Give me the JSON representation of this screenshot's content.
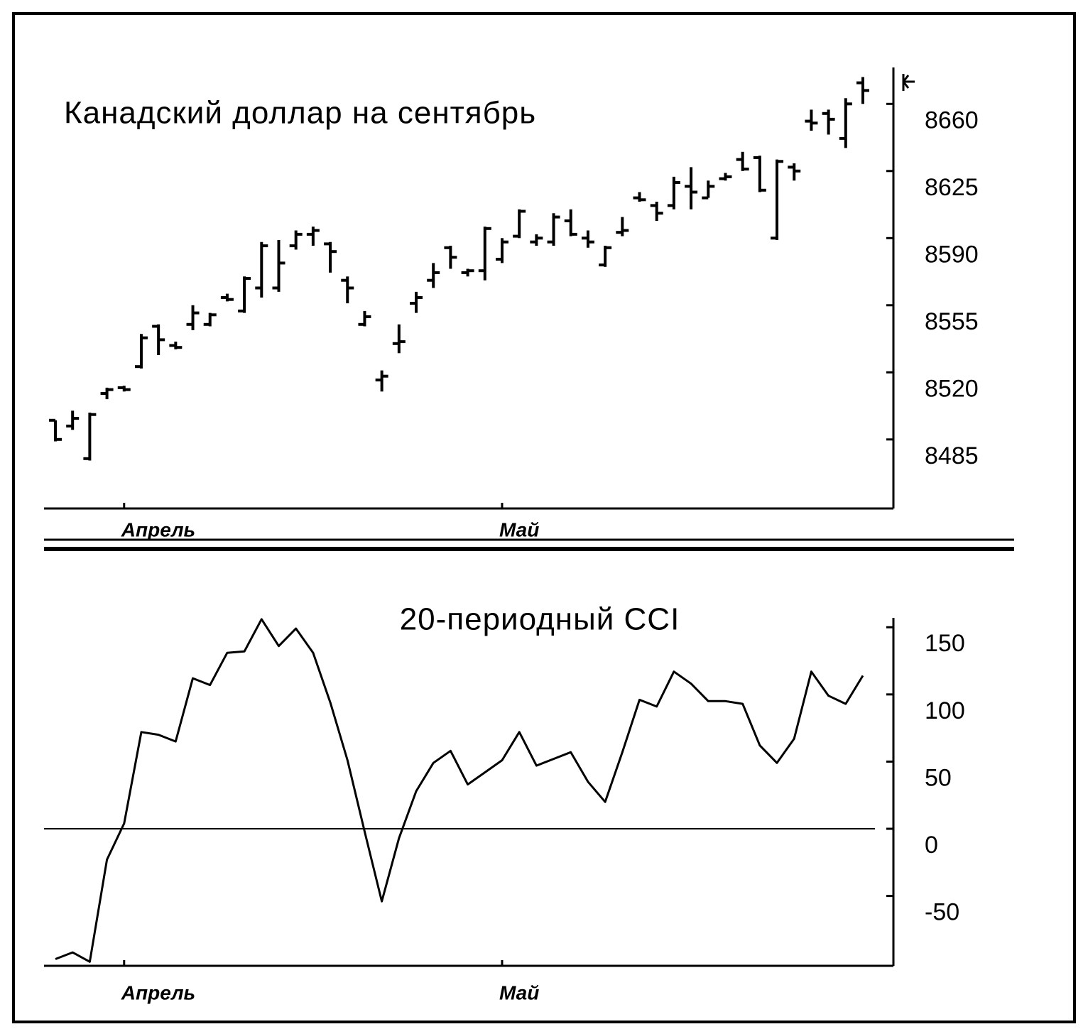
{
  "chart_data": [
    {
      "type": "ohlc",
      "title": "Канадский доллар на сентябрь",
      "color": "#000000",
      "categories": [
        null,
        null,
        null,
        null,
        "Апрель",
        null,
        null,
        null,
        null,
        null,
        null,
        null,
        null,
        null,
        null,
        null,
        null,
        null,
        null,
        null,
        null,
        null,
        null,
        null,
        null,
        null,
        "Май",
        null,
        null,
        null,
        null,
        null,
        null,
        null,
        null,
        null,
        null,
        null,
        null,
        null,
        null,
        null,
        null,
        null,
        null,
        null,
        null,
        null
      ],
      "open": [
        8495,
        8492,
        8475,
        8509,
        8512,
        8523,
        8544,
        8534,
        8545,
        8545,
        8559,
        8552,
        8564,
        8564,
        8586,
        8592,
        8587,
        8568,
        8545,
        8516,
        8535,
        8556,
        8568,
        8585,
        8572,
        8573,
        8579,
        8591,
        8588,
        8588,
        8599,
        8590,
        8576,
        8593,
        8611,
        8607,
        8607,
        8617,
        8611,
        8621,
        8631,
        8632,
        8590,
        8627,
        8651,
        8655,
        8642,
        8671
      ],
      "high": [
        8495,
        8500,
        8499,
        8512,
        8513,
        8540,
        8545,
        8536,
        8555,
        8551,
        8561,
        8570,
        8588,
        8589,
        8594,
        8596,
        8588,
        8570,
        8552,
        8521,
        8545,
        8562,
        8577,
        8586,
        8574,
        8596,
        8590,
        8605,
        8592,
        8603,
        8605,
        8594,
        8586,
        8601,
        8614,
        8609,
        8622,
        8627,
        8620,
        8624,
        8635,
        8633,
        8631,
        8629,
        8657,
        8657,
        8663,
        8674
      ],
      "low": [
        8484,
        8490,
        8474,
        8506,
        8510,
        8522,
        8529,
        8532,
        8542,
        8544,
        8557,
        8551,
        8559,
        8562,
        8584,
        8586,
        8572,
        8556,
        8544,
        8510,
        8530,
        8551,
        8564,
        8574,
        8570,
        8568,
        8577,
        8590,
        8586,
        8586,
        8591,
        8585,
        8575,
        8591,
        8609,
        8599,
        8605,
        8605,
        8611,
        8620,
        8625,
        8614,
        8589,
        8620,
        8646,
        8644,
        8637,
        8660
      ],
      "close": [
        8485,
        8496,
        8498,
        8511,
        8511,
        8538,
        8537,
        8533,
        8551,
        8550,
        8558,
        8569,
        8586,
        8577,
        8592,
        8594,
        8583,
        8564,
        8549,
        8518,
        8536,
        8559,
        8572,
        8580,
        8573,
        8595,
        8588,
        8604,
        8590,
        8601,
        8592,
        8588,
        8585,
        8594,
        8610,
        8603,
        8619,
        8614,
        8617,
        8622,
        8626,
        8615,
        8630,
        8625,
        8650,
        8652,
        8660,
        8667
      ],
      "ylim": [
        8449,
        8679
      ],
      "yticks": [
        8485,
        8520,
        8555,
        8590,
        8625,
        8660
      ]
    },
    {
      "type": "line",
      "title": "20-периодный CCI",
      "color": "#000000",
      "categories": [
        null,
        null,
        null,
        null,
        "Апрель",
        null,
        null,
        null,
        null,
        null,
        null,
        null,
        null,
        null,
        null,
        null,
        null,
        null,
        null,
        null,
        null,
        null,
        null,
        null,
        null,
        null,
        "Май",
        null,
        null,
        null,
        null,
        null,
        null,
        null,
        null,
        null,
        null,
        null,
        null,
        null,
        null,
        null,
        null,
        null,
        null,
        null,
        null,
        null
      ],
      "values": [
        -97,
        -92,
        -99,
        -23,
        4,
        72,
        70,
        65,
        112,
        107,
        131,
        132,
        156,
        136,
        149,
        131,
        94,
        51,
        -2,
        -54,
        -7,
        28,
        49,
        58,
        33,
        42,
        51,
        72,
        47,
        52,
        57,
        35,
        20,
        57,
        96,
        91,
        117,
        108,
        95,
        95,
        93,
        62,
        49,
        67,
        117,
        99,
        93,
        114
      ],
      "ylim": [
        -102,
        157
      ],
      "yticks": [
        -50,
        0,
        50,
        100,
        150
      ]
    }
  ]
}
